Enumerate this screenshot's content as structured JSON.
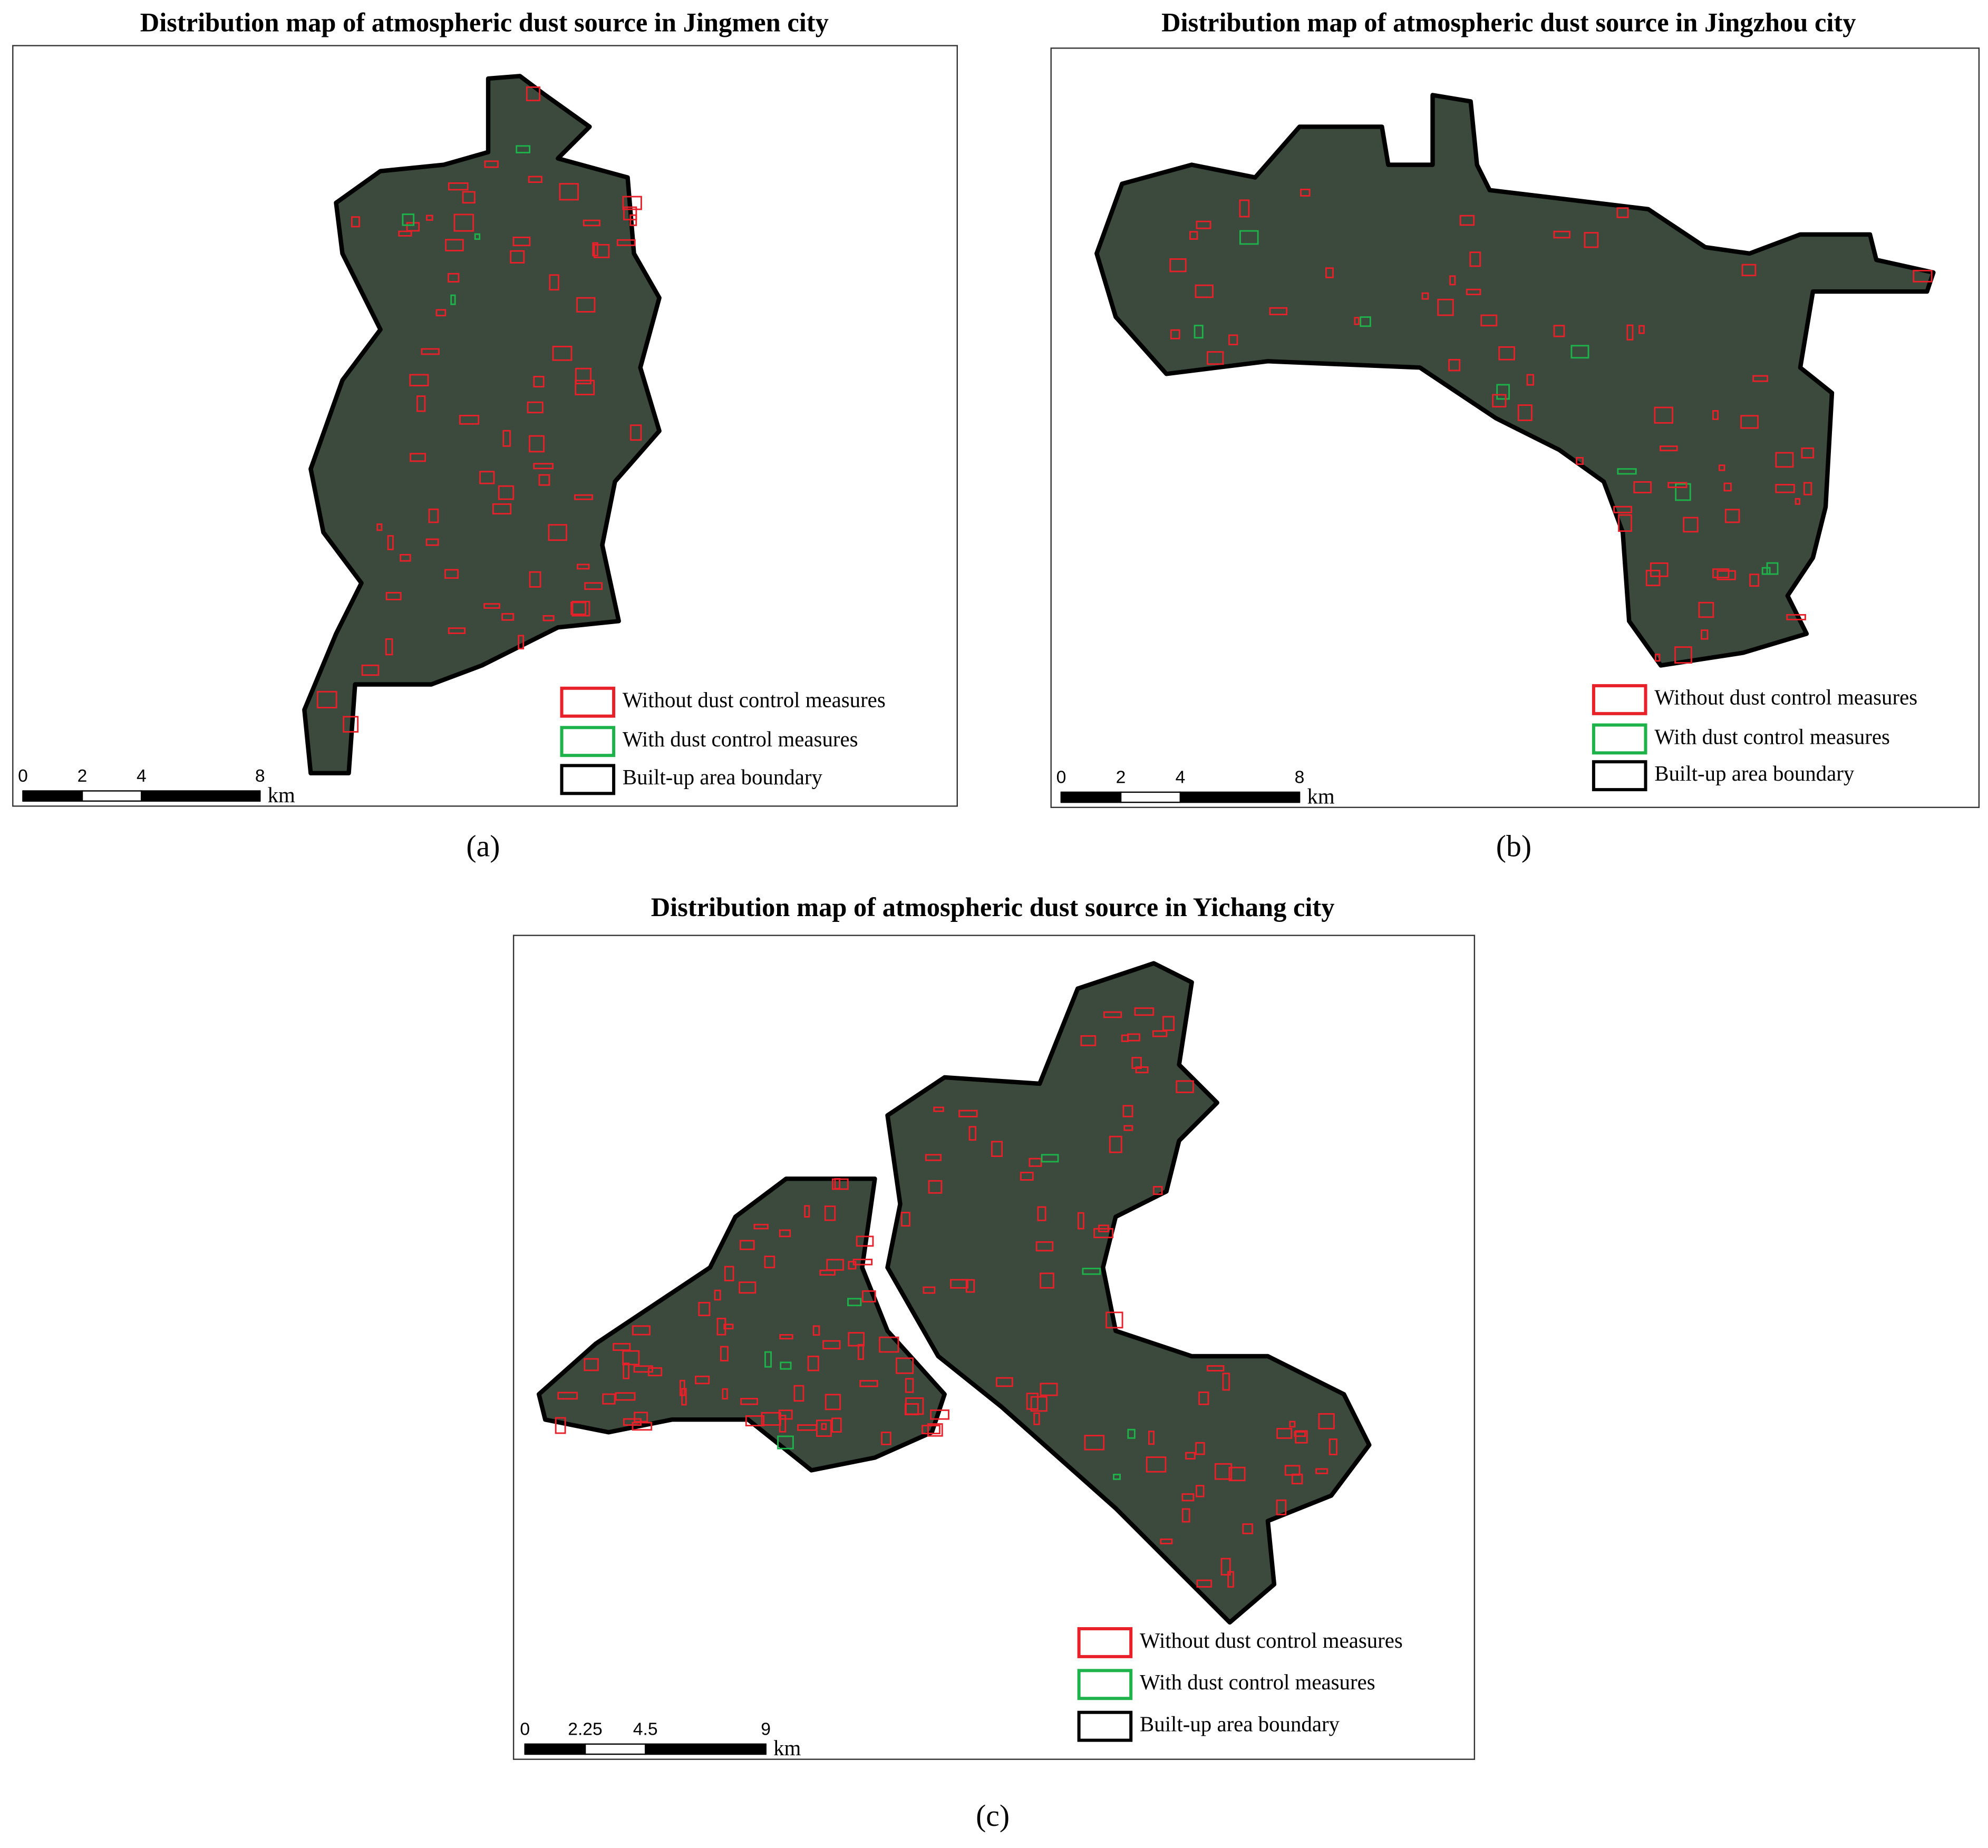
{
  "maps": [
    {
      "title": "Distribution map of atmospheric dust source in Jingmen city",
      "legend": [
        {
          "label": "Without dust control measures",
          "color": "#e8202a"
        },
        {
          "label": "With dust control measures",
          "color": "#1db34a"
        },
        {
          "label": "Built-up area boundary",
          "color": "#000000"
        }
      ],
      "scale_bar": {
        "ticks": [
          0,
          2,
          4,
          8
        ],
        "unit": "km"
      },
      "panel_label": "(a)"
    },
    {
      "title": "Distribution map of atmospheric dust source in Jingzhou city",
      "legend": [
        {
          "label": "Without dust control measures",
          "color": "#e8202a"
        },
        {
          "label": "With dust control measures",
          "color": "#1db34a"
        },
        {
          "label": "Built-up area boundary",
          "color": "#000000"
        }
      ],
      "scale_bar": {
        "ticks": [
          0,
          2,
          4,
          8
        ],
        "unit": "km"
      },
      "panel_label": "(b)"
    },
    {
      "title": "Distribution map of atmospheric dust source in Yichang city",
      "legend": [
        {
          "label": "Without dust control measures",
          "color": "#e8202a"
        },
        {
          "label": "With dust control measures",
          "color": "#1db34a"
        },
        {
          "label": "Built-up area boundary",
          "color": "#000000"
        }
      ],
      "scale_bar": {
        "ticks": [
          0,
          2.25,
          4.5,
          9
        ],
        "unit": "km"
      },
      "panel_label": "(c)"
    }
  ]
}
